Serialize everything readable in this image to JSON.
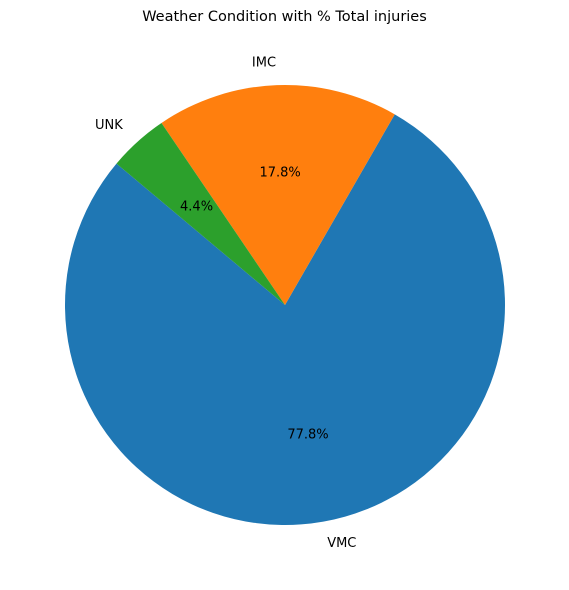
{
  "chart_data": {
    "type": "pie",
    "title": "Weather Condition with % Total injuries",
    "slices": [
      {
        "label": "VMC",
        "value": 77.8,
        "pct_label": "77.8%",
        "color": "#1f77b4"
      },
      {
        "label": "IMC",
        "value": 17.8,
        "pct_label": "17.8%",
        "color": "#ff7f0e"
      },
      {
        "label": "UNK",
        "value": 4.4,
        "pct_label": "4.4%",
        "color": "#2ca02c"
      }
    ],
    "start_angle_deg": 140,
    "direction": "counterclockwise"
  }
}
